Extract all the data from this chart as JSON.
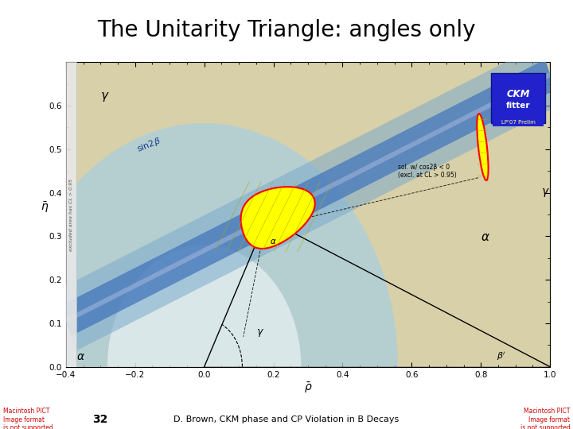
{
  "title": "The Unitarity Triangle: angles only",
  "title_fontsize": 20,
  "background_color": "#ffffff",
  "footer_page": "32",
  "footer_center": "D. Brown, CKM phase and CP Violation in B Decays",
  "footer_left": "Macintosh PICT\nImage format\nis not supported",
  "footer_right": "Macintosh PICT\nImage format\nis not supported",
  "footer_left_color": "#cc0000",
  "footer_right_color": "#cc0000",
  "plot_xlim": [
    -0.4,
    1.0
  ],
  "plot_ylim": [
    0.0,
    0.7
  ],
  "plot_xticks": [
    -0.4,
    -0.2,
    0.0,
    0.2,
    0.4,
    0.6,
    0.8,
    1.0
  ],
  "plot_yticks": [
    0,
    0.1,
    0.2,
    0.3,
    0.4,
    0.5,
    0.6
  ],
  "plot_bg": "#d8d0a8",
  "apex_rho": 0.18,
  "apex_eta": 0.34,
  "sol_text": "sol. w/ cos2β < 0\n(excl. at CL > 0.95)",
  "excluded_text": "excluded area has CL > 0.95",
  "ckm_prelim": "LP'07 Prelim"
}
